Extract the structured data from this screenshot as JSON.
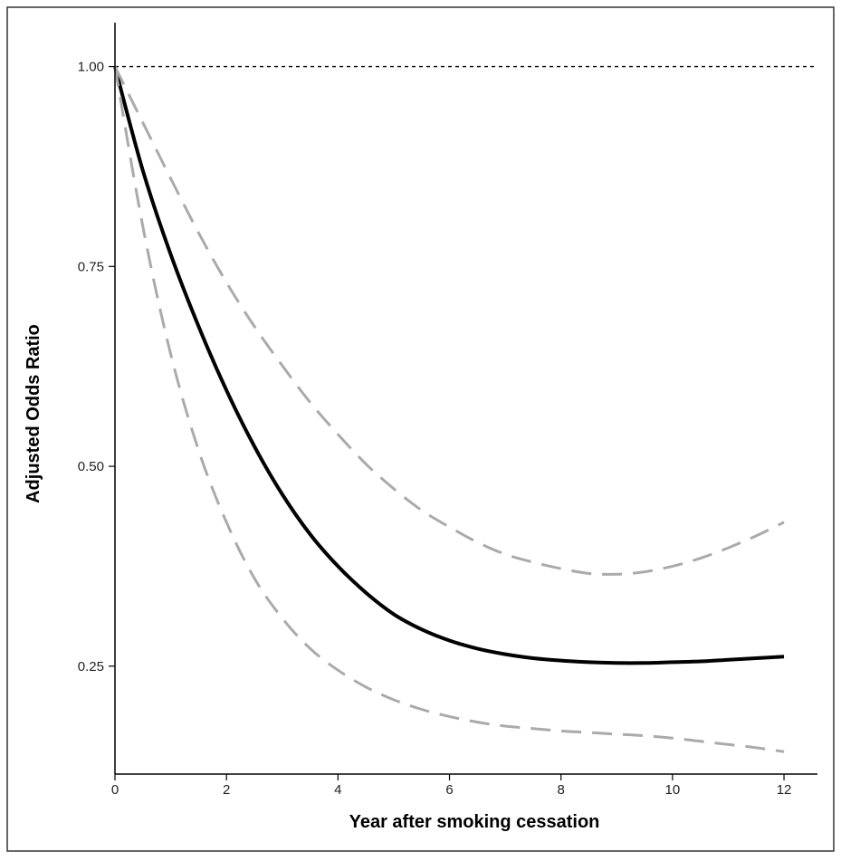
{
  "chart_data": {
    "type": "line",
    "xlabel": "Year after smoking cessation",
    "ylabel": "Adjusted Odds Ratio",
    "xlim": [
      0,
      12.6
    ],
    "ylim": [
      0.115,
      1.055
    ],
    "x_ticks": [
      0,
      2,
      4,
      6,
      8,
      10,
      12
    ],
    "x_tick_labels": [
      "0",
      "2",
      "4",
      "6",
      "8",
      "10",
      "12"
    ],
    "y_ticks": [
      1.0,
      0.75,
      0.5,
      0.25
    ],
    "y_tick_labels": [
      "1.00",
      "0.75",
      "0.50",
      "0.25"
    ],
    "reference_line": {
      "y": 1.0,
      "style": "dotted"
    },
    "grid": false,
    "series": [
      {
        "role": "estimate",
        "style": "solid",
        "color": "#000000",
        "x": [
          0,
          0.5,
          1,
          1.5,
          2,
          2.5,
          3,
          3.5,
          4,
          4.5,
          5,
          5.5,
          6,
          6.5,
          7,
          7.5,
          8,
          8.5,
          9,
          9.5,
          10,
          10.5,
          11,
          11.5,
          12
        ],
        "y": [
          1.0,
          0.87,
          0.765,
          0.675,
          0.595,
          0.525,
          0.465,
          0.415,
          0.375,
          0.342,
          0.315,
          0.296,
          0.282,
          0.272,
          0.265,
          0.26,
          0.257,
          0.255,
          0.254,
          0.254,
          0.255,
          0.256,
          0.258,
          0.26,
          0.262
        ]
      },
      {
        "role": "upper confidence bound",
        "style": "dashed",
        "color": "#aaaaaa",
        "x": [
          0,
          0.5,
          1,
          1.5,
          2,
          2.5,
          3,
          3.5,
          4,
          4.5,
          5,
          5.5,
          6,
          6.5,
          7,
          7.5,
          8,
          8.5,
          9,
          9.5,
          10,
          10.5,
          11,
          11.5,
          12
        ],
        "y": [
          1.0,
          0.93,
          0.86,
          0.792,
          0.73,
          0.675,
          0.626,
          0.58,
          0.54,
          0.503,
          0.472,
          0.445,
          0.424,
          0.405,
          0.39,
          0.38,
          0.372,
          0.366,
          0.365,
          0.368,
          0.375,
          0.385,
          0.398,
          0.413,
          0.43
        ]
      },
      {
        "role": "lower confidence bound",
        "style": "dashed",
        "color": "#aaaaaa",
        "x": [
          0,
          0.5,
          1,
          1.5,
          2,
          2.5,
          3,
          3.5,
          4,
          4.5,
          5,
          5.5,
          6,
          6.5,
          7,
          7.5,
          8,
          8.5,
          9,
          9.5,
          10,
          10.5,
          11,
          11.5,
          12
        ],
        "y": [
          1.0,
          0.8,
          0.64,
          0.52,
          0.43,
          0.36,
          0.31,
          0.272,
          0.245,
          0.224,
          0.208,
          0.196,
          0.187,
          0.18,
          0.175,
          0.172,
          0.169,
          0.167,
          0.165,
          0.163,
          0.16,
          0.156,
          0.152,
          0.148,
          0.143
        ]
      }
    ]
  }
}
